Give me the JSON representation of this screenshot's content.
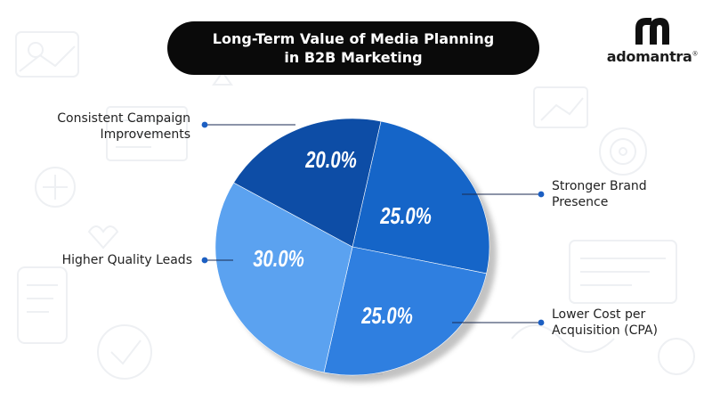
{
  "header": {
    "title_line1": "Long-Term Value of Media Planning",
    "title_line2": "in B2B Marketing"
  },
  "brand": {
    "name": "adomantra",
    "mark": "®",
    "mark_color": "#101010"
  },
  "colors": {
    "title_bg": "#0a0a0a",
    "title_text": "#ffffff",
    "slice_strongest": "#1565c8",
    "slice_darkest": "#0d4da6",
    "slice_light": "#5ba2f0",
    "slice_mid": "#2f7fe0",
    "shadow": "#7a7a7a",
    "leader_line": "#1a2a50",
    "leader_dot": "#1c5fc2",
    "label_text": "#222222",
    "value_text": "#ffffff"
  },
  "chart_data": {
    "type": "pie",
    "title": "Long-Term Value of Media Planning in B2B Marketing",
    "slices": [
      {
        "label_lines": [
          "Stronger Brand",
          "Presence"
        ],
        "label": "Stronger Brand Presence",
        "value": 25.0,
        "value_text": "25.0%",
        "color": "#1565c8"
      },
      {
        "label_lines": [
          "Lower Cost per",
          "Acquisition (CPA)"
        ],
        "label": "Lower Cost per Acquisition (CPA)",
        "value": 25.0,
        "value_text": "25.0%",
        "color": "#2f7fe0"
      },
      {
        "label_lines": [
          "Higher Quality Leads"
        ],
        "label": "Higher Quality Leads",
        "value": 30.0,
        "value_text": "30.0%",
        "color": "#5ba2f0"
      },
      {
        "label_lines": [
          "Consistent Campaign",
          "Improvements"
        ],
        "label": "Consistent Campaign Improvements",
        "value": 20.0,
        "value_text": "20.0%",
        "color": "#0d4da6"
      }
    ],
    "legend": "leader-line labels around pie"
  }
}
